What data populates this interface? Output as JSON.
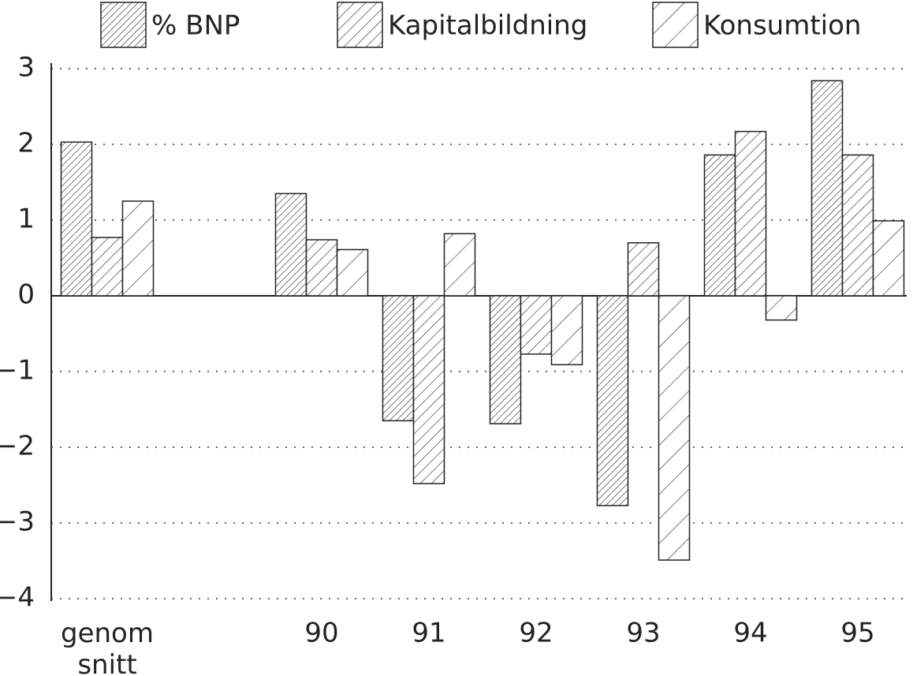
{
  "chart_data": {
    "type": "bar",
    "categories": [
      "genom\nsnitt",
      null,
      "90",
      "91",
      "92",
      "93",
      "94",
      "95"
    ],
    "series": [
      {
        "name": "% BNP",
        "values": [
          2.03,
          null,
          1.35,
          -1.65,
          -1.69,
          -2.77,
          1.86,
          2.84
        ]
      },
      {
        "name": "Kapitalbildning",
        "values": [
          0.77,
          null,
          0.74,
          -2.48,
          -0.77,
          0.7,
          2.17,
          1.86
        ]
      },
      {
        "name": "Konsumtion",
        "values": [
          1.25,
          null,
          0.61,
          0.82,
          -0.91,
          -3.49,
          -0.32,
          0.99
        ]
      }
    ],
    "ylim": [
      -4,
      3
    ],
    "yticks": [
      {
        "value": -4,
        "label": "−4"
      },
      {
        "value": -3,
        "label": "−3"
      },
      {
        "value": -2,
        "label": "−2"
      },
      {
        "value": -1,
        "label": "−1"
      },
      0,
      1,
      2,
      3
    ],
    "grid": true,
    "legend": "top"
  }
}
